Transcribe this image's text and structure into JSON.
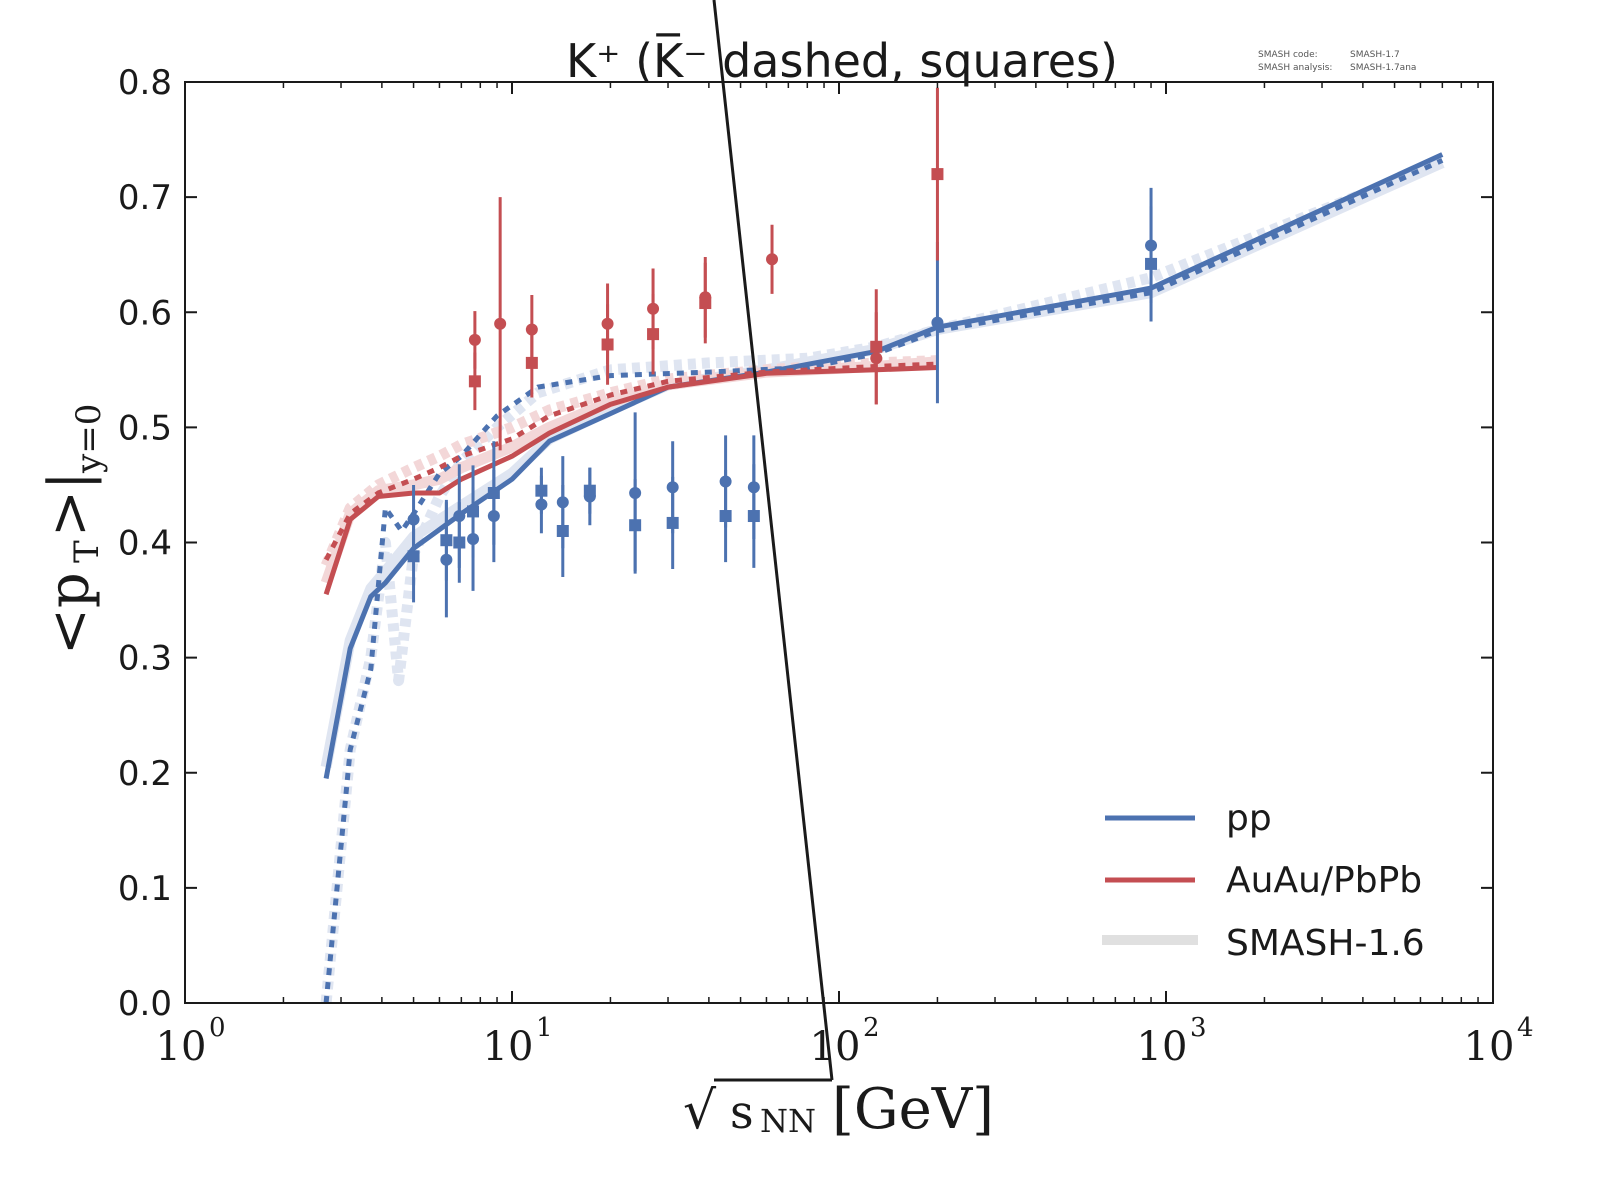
{
  "chart_data": {
    "type": "line",
    "title": "K⁺ (K̅⁻ dashed, squares)",
    "meta": {
      "line1_label": "SMASH code:",
      "line1_value": "SMASH-1.7",
      "line2_label": "SMASH analysis:",
      "line2_value": "SMASH-1.7ana"
    },
    "xlabel": "√s_NN [GeV]",
    "xlabel_parts": {
      "sqrt": "√",
      "var": "s",
      "sub": "NN",
      "unit": "[GeV]"
    },
    "ylabel": "<p_T>|_{y=0}",
    "ylabel_parts": {
      "open": "<p",
      "sub": "T",
      "close": ">|",
      "cond": "y=0"
    },
    "xscale": "log",
    "xlim": [
      1,
      10000
    ],
    "ylim": [
      0.0,
      0.8
    ],
    "grid": false,
    "xticks": [
      {
        "value": 1,
        "base": "10",
        "exp": "0"
      },
      {
        "value": 10,
        "base": "10",
        "exp": "1"
      },
      {
        "value": 100,
        "base": "10",
        "exp": "2"
      },
      {
        "value": 1000,
        "base": "10",
        "exp": "3"
      },
      {
        "value": 10000,
        "base": "10",
        "exp": "4"
      }
    ],
    "yticks": [
      {
        "value": 0.0,
        "label": "0.0"
      },
      {
        "value": 0.1,
        "label": "0.1"
      },
      {
        "value": 0.2,
        "label": "0.2"
      },
      {
        "value": 0.3,
        "label": "0.3"
      },
      {
        "value": 0.4,
        "label": "0.4"
      },
      {
        "value": 0.5,
        "label": "0.5"
      },
      {
        "value": 0.6,
        "label": "0.6"
      },
      {
        "value": 0.7,
        "label": "0.7"
      },
      {
        "value": 0.8,
        "label": "0.8"
      }
    ],
    "colors": {
      "pp": "#4c72b0",
      "AuAu": "#c44e52",
      "pp_old": "#dfe5f1",
      "AuAu_old": "#f3d7d8",
      "legend_old": "#e0e0e0"
    },
    "legend": {
      "position": "lower-right",
      "entries": [
        {
          "label": "pp",
          "color": "#4c72b0",
          "style": "solid"
        },
        {
          "label": "AuAu/PbPb",
          "color": "#c44e52",
          "style": "solid"
        },
        {
          "label": "SMASH-1.6",
          "color": "#e0e0e0",
          "style": "thick"
        }
      ]
    },
    "series": [
      {
        "name": "pp K+ (SMASH-1.7)",
        "color": "#4c72b0",
        "style": "solid",
        "x": [
          2.7,
          3.2,
          3.7,
          4.1,
          5.0,
          7.0,
          10.0,
          13.0,
          20.0,
          30.0,
          60.0,
          130.0,
          200.0,
          900.0,
          7000.0
        ],
        "y": [
          0.195,
          0.308,
          0.353,
          0.365,
          0.395,
          0.425,
          0.455,
          0.488,
          0.512,
          0.535,
          0.548,
          0.566,
          0.587,
          0.621,
          0.737
        ]
      },
      {
        "name": "pp K- (SMASH-1.7)",
        "color": "#4c72b0",
        "style": "dashed",
        "x": [
          2.7,
          3.2,
          3.7,
          4.1,
          4.6,
          5.0,
          6.0,
          7.0,
          9.0,
          12.0,
          20.0,
          40.0,
          80.0,
          130.0,
          200.0,
          900.0,
          7000.0
        ],
        "y": [
          0.0,
          0.22,
          0.29,
          0.43,
          0.41,
          0.425,
          0.46,
          0.475,
          0.51,
          0.535,
          0.545,
          0.548,
          0.552,
          0.564,
          0.584,
          0.617,
          0.732
        ]
      },
      {
        "name": "AuAu K+ (SMASH-1.7)",
        "color": "#c44e52",
        "style": "solid",
        "x": [
          2.7,
          3.2,
          3.9,
          5.0,
          6.0,
          7.0,
          10.0,
          13.0,
          20.0,
          30.0,
          60.0,
          130.0,
          200.0
        ],
        "y": [
          0.355,
          0.42,
          0.44,
          0.443,
          0.443,
          0.455,
          0.475,
          0.495,
          0.52,
          0.535,
          0.547,
          0.55,
          0.552
        ]
      },
      {
        "name": "AuAu K- (SMASH-1.7)",
        "color": "#c44e52",
        "style": "dashed",
        "x": [
          2.7,
          3.2,
          3.9,
          5.0,
          6.0,
          7.0,
          10.0,
          13.0,
          20.0,
          30.0,
          60.0,
          130.0,
          200.0
        ],
        "y": [
          0.385,
          0.425,
          0.443,
          0.455,
          0.465,
          0.475,
          0.49,
          0.51,
          0.528,
          0.54,
          0.548,
          0.553,
          0.555
        ]
      },
      {
        "name": "pp K+ (SMASH-1.6)",
        "color": "#dfe5f1",
        "style": "thick",
        "x": [
          2.7,
          3.2,
          3.7,
          4.1,
          5.0,
          7.0,
          10.0,
          13.0,
          20.0,
          30.0,
          60.0,
          130.0,
          200.0,
          900.0,
          7000.0
        ],
        "y": [
          0.205,
          0.315,
          0.36,
          0.375,
          0.405,
          0.432,
          0.46,
          0.49,
          0.515,
          0.537,
          0.55,
          0.568,
          0.585,
          0.617,
          0.73
        ]
      },
      {
        "name": "pp K- (SMASH-1.6)",
        "color": "#dfe5f1",
        "style": "thick-dashed",
        "x": [
          2.7,
          3.2,
          3.7,
          4.1,
          4.5,
          5.0,
          6.0,
          7.0,
          9.0,
          12.0,
          20.0,
          40.0,
          80.0,
          130.0,
          200.0,
          900.0,
          7000.0
        ],
        "y": [
          0.0,
          0.22,
          0.3,
          0.4,
          0.28,
          0.39,
          0.44,
          0.47,
          0.5,
          0.53,
          0.55,
          0.556,
          0.56,
          0.57,
          0.585,
          0.63,
          0.73
        ]
      },
      {
        "name": "AuAu K+ (SMASH-1.6)",
        "color": "#f3d7d8",
        "style": "thick",
        "x": [
          2.7,
          3.2,
          3.9,
          5.0,
          6.0,
          7.0,
          10.0,
          13.0,
          20.0,
          30.0,
          60.0,
          130.0,
          200.0
        ],
        "y": [
          0.365,
          0.425,
          0.445,
          0.45,
          0.455,
          0.465,
          0.483,
          0.5,
          0.522,
          0.537,
          0.548,
          0.553,
          0.557
        ]
      },
      {
        "name": "AuAu K- (SMASH-1.6)",
        "color": "#f3d7d8",
        "style": "thick-dashed",
        "x": [
          2.7,
          3.2,
          3.9,
          5.0,
          6.0,
          7.0,
          10.0,
          13.0,
          20.0,
          30.0,
          60.0,
          130.0,
          200.0
        ],
        "y": [
          0.38,
          0.43,
          0.45,
          0.465,
          0.475,
          0.485,
          0.5,
          0.515,
          0.53,
          0.542,
          0.55,
          0.556,
          0.558
        ]
      }
    ],
    "points": [
      {
        "name": "pp K+ data",
        "color": "#4c72b0",
        "marker": "circle",
        "x": [
          5.0,
          6.3,
          6.9,
          7.6,
          8.8,
          12.3,
          14.3,
          17.3,
          23.8,
          31.0,
          45.0,
          54.9,
          200.0,
          900.0
        ],
        "y": [
          0.42,
          0.385,
          0.423,
          0.403,
          0.423,
          0.433,
          0.435,
          0.44,
          0.443,
          0.448,
          0.453,
          0.448,
          0.591,
          0.658
        ],
        "err": [
          0.03,
          0.05,
          0.045,
          0.045,
          0.04,
          0.025,
          0.04,
          0.025,
          0.07,
          0.04,
          0.04,
          0.045,
          0.07,
          0.05
        ]
      },
      {
        "name": "pp K- data",
        "color": "#4c72b0",
        "marker": "square",
        "x": [
          5.0,
          6.3,
          6.9,
          7.6,
          8.8,
          12.3,
          14.3,
          17.3,
          23.8,
          31.0,
          45.0,
          54.9,
          900.0
        ],
        "y": [
          0.388,
          0.402,
          0.4,
          0.427,
          0.443,
          0.445,
          0.41,
          0.445,
          0.415,
          0.417,
          0.423,
          0.423,
          0.642
        ],
        "err": [
          0.04,
          0.035,
          0.035,
          0.04,
          0.045,
          0.02,
          0.04,
          0.02,
          0.04,
          0.04,
          0.04,
          0.045,
          0.05
        ]
      },
      {
        "name": "AuAu K+ data",
        "color": "#c44e52",
        "marker": "circle",
        "x": [
          7.7,
          9.2,
          11.5,
          19.6,
          27.0,
          39.0,
          62.4,
          130.0
        ],
        "y": [
          0.576,
          0.59,
          0.585,
          0.59,
          0.603,
          0.613,
          0.646,
          0.56
        ],
        "err": [
          0.025,
          0.11,
          0.03,
          0.035,
          0.035,
          0.035,
          0.03,
          0.04
        ]
      },
      {
        "name": "AuAu K- data",
        "color": "#c44e52",
        "marker": "square",
        "x": [
          7.7,
          11.5,
          19.6,
          27.0,
          39.0,
          130.0,
          200.0
        ],
        "y": [
          0.54,
          0.556,
          0.572,
          0.581,
          0.608,
          0.57,
          0.72
        ],
        "err": [
          0.025,
          0.03,
          0.035,
          0.035,
          0.035,
          0.05,
          0.075
        ]
      }
    ]
  }
}
